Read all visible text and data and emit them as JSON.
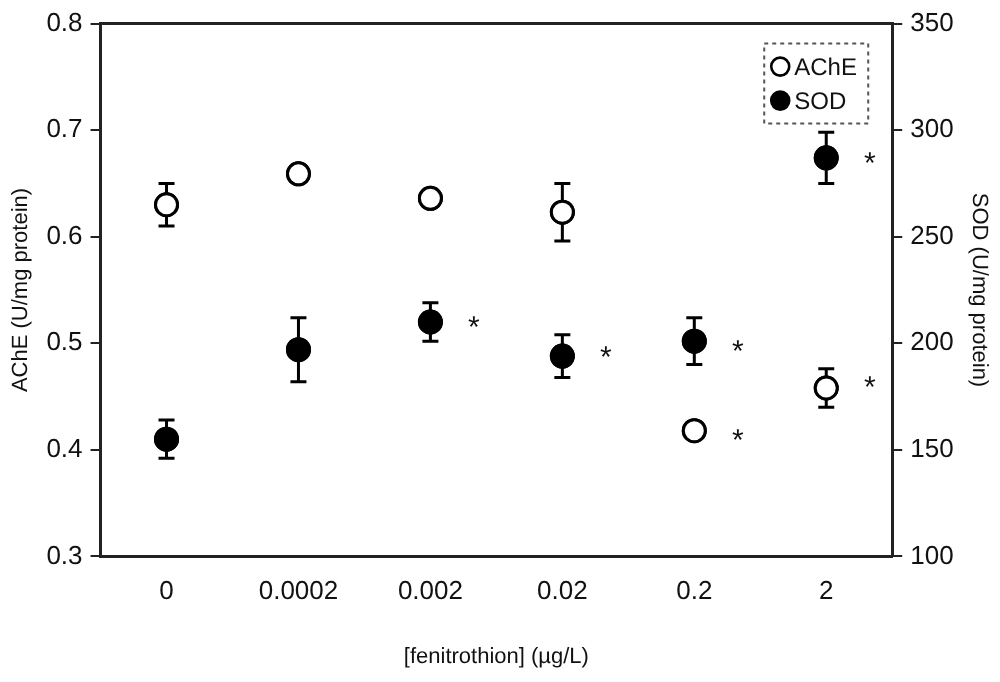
{
  "chart_data": {
    "type": "scatter",
    "xlabel": "[fenitrothion] (µg/L)",
    "ylabel": "AChE (U/mg protein)",
    "y2label": "SOD (U/mg protein)",
    "categories": [
      "0",
      "0.0002",
      "0.002",
      "0.02",
      "0.2",
      "2"
    ],
    "series": [
      {
        "name": "AChE",
        "color": "#ffffff",
        "values": [
          0.63,
          0.659,
          0.636,
          0.623,
          0.418,
          0.458
        ],
        "errors": [
          0.02,
          null,
          null,
          0.027,
          null,
          0.018
        ]
      },
      {
        "name": "SOD",
        "color": "#000000",
        "axis": "y2",
        "values": [
          155,
          197,
          210,
          194,
          201,
          287
        ],
        "errors": [
          9,
          15,
          9,
          10,
          11,
          12
        ]
      }
    ],
    "ylim": [
      0.3,
      0.8
    ],
    "yticks": [
      0.3,
      0.4,
      0.5,
      0.6,
      0.7,
      0.8
    ],
    "y2lim": [
      100,
      350
    ],
    "y2ticks": [
      100,
      150,
      200,
      250,
      300,
      350
    ],
    "annotations": [
      {
        "text": "*",
        "x": "0.002",
        "y": 0.519
      },
      {
        "text": "*",
        "x": "0.02",
        "y": 0.491
      },
      {
        "text": "*",
        "x": "0.2",
        "y": 0.497
      },
      {
        "text": "*",
        "x": "0.2",
        "y": 0.413
      },
      {
        "text": "*",
        "x": "2",
        "y": 0.673
      },
      {
        "text": "*",
        "x": "2",
        "y": 0.463
      }
    ],
    "grid": false,
    "legend": "top right",
    "marker": "circle"
  }
}
